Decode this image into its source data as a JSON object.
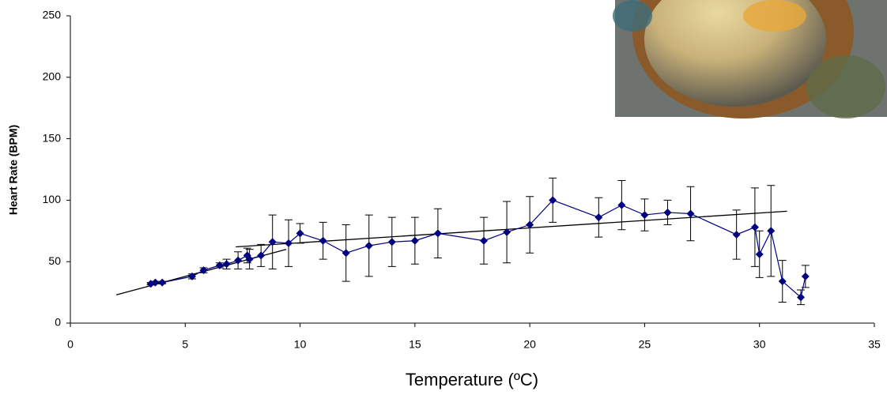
{
  "chart_data": {
    "type": "scatter",
    "x_label": "Temperature (ºC)",
    "y_label": "Heart Rate (BPM)",
    "xlim": [
      0,
      35
    ],
    "xticks": [
      0,
      5,
      10,
      15,
      20,
      25,
      30,
      35
    ],
    "ylim": [
      0,
      250
    ],
    "yticks": [
      0,
      50,
      100,
      150,
      200,
      250
    ],
    "series": [
      {
        "color": "#000080",
        "x": [
          3.5,
          3.7,
          4,
          5.3,
          5.8,
          6.5,
          6.8,
          7.3,
          7.7,
          7.8,
          8.3,
          8.8,
          9.5,
          10,
          11,
          12,
          13,
          14,
          15,
          16,
          18,
          19,
          20,
          21,
          23,
          24,
          25,
          26,
          27,
          29,
          29.8,
          30,
          30.5,
          31,
          31.8,
          32
        ],
        "values": [
          32,
          33,
          33,
          38,
          43,
          47,
          48,
          51,
          55,
          52,
          55,
          66,
          65,
          73,
          67,
          57,
          63,
          66,
          67,
          73,
          67,
          74,
          80,
          100,
          86,
          96,
          88,
          90,
          89,
          72,
          78,
          56,
          75,
          34,
          21,
          38
        ],
        "errors": [
          1,
          1,
          1,
          2,
          2,
          2,
          4,
          7,
          6,
          8,
          9,
          22,
          19,
          8,
          15,
          23,
          25,
          20,
          19,
          20,
          19,
          25,
          23,
          18,
          16,
          20,
          13,
          10,
          22,
          20,
          32,
          19,
          37,
          17,
          6,
          9
        ]
      }
    ],
    "trendlines": [
      {
        "color": "#000000",
        "x": [
          2,
          9.4
        ],
        "values": [
          23,
          60
        ]
      },
      {
        "color": "#000000",
        "x": [
          7.2,
          31.2
        ],
        "values": [
          62,
          91
        ]
      }
    ]
  }
}
